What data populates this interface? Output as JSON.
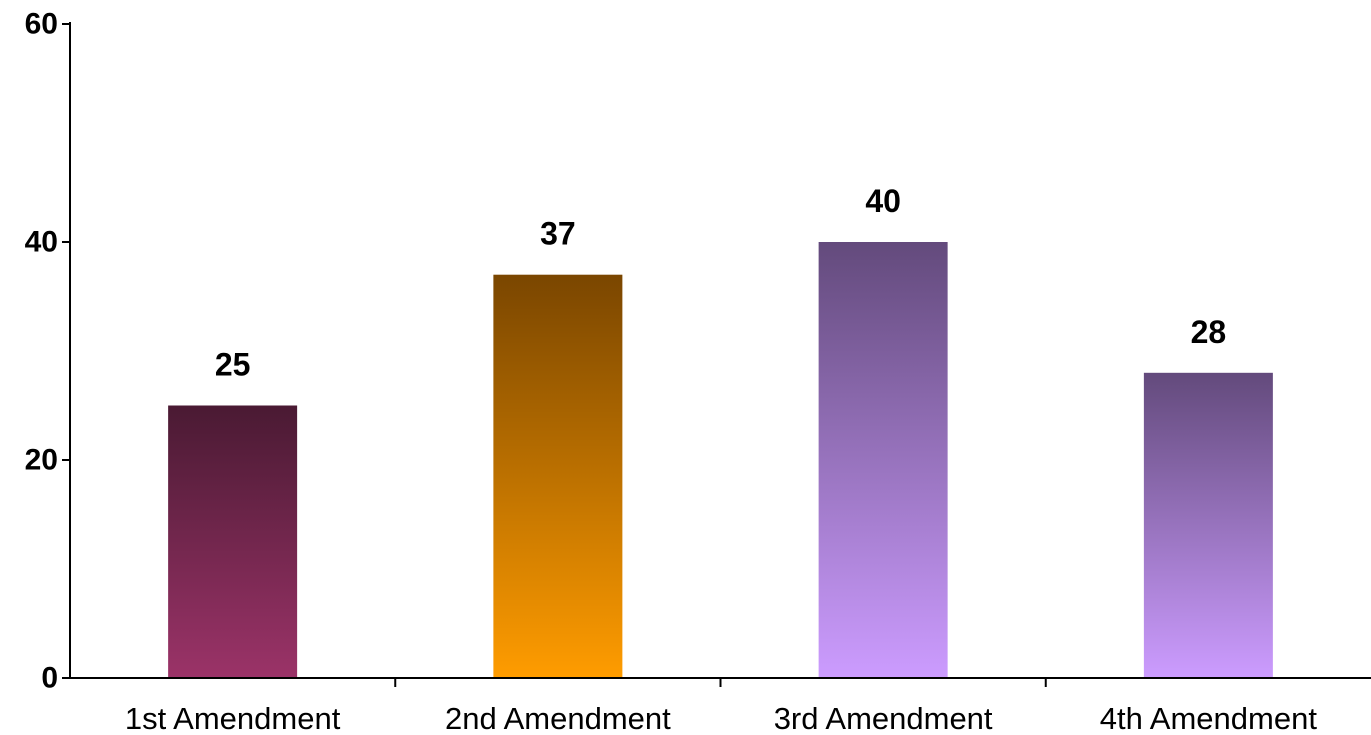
{
  "chart_data": {
    "type": "bar",
    "title": "",
    "xlabel": "",
    "ylabel": "",
    "categories": [
      "1st Amendment",
      "2nd Amendment",
      "3rd Amendment",
      "4th Amendment"
    ],
    "values": [
      25,
      37,
      40,
      28
    ],
    "data_labels": [
      "25",
      "37",
      "40",
      "28"
    ],
    "ylim": [
      0,
      60
    ],
    "yticks": [
      0,
      20,
      40,
      60
    ],
    "ytick_labels": [
      "0",
      "20",
      "40",
      "60"
    ],
    "grid": false,
    "legend": "none",
    "bar_colors": [
      {
        "top": "#4a1a33",
        "bottom": "#9b3368"
      },
      {
        "top": "#7a4600",
        "bottom": "#ff9c00"
      },
      {
        "top": "#634a7c",
        "bottom": "#cc9cff"
      },
      {
        "top": "#634a7c",
        "bottom": "#cc9cff"
      }
    ]
  }
}
